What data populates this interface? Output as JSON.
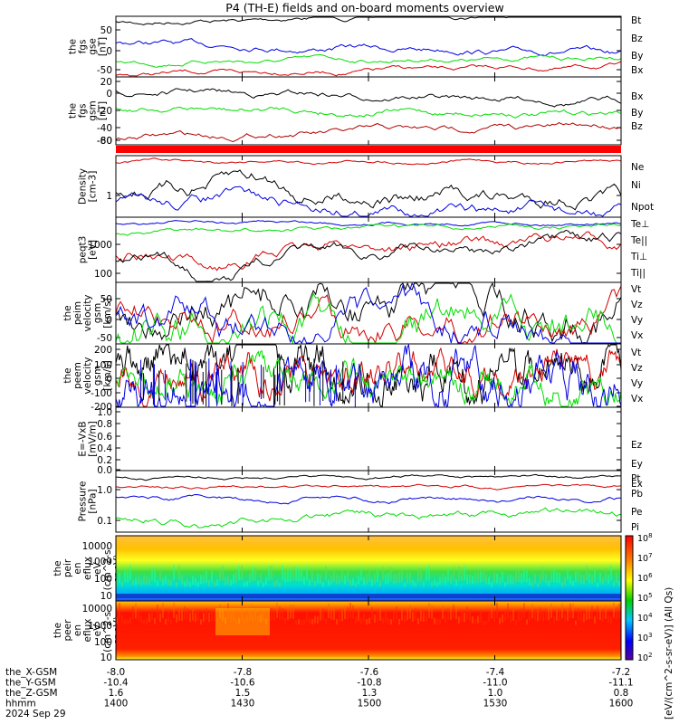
{
  "title": "P4 (TH-E) fields and on-board moments overview",
  "colors": {
    "black": "#000000",
    "red": "#d40000",
    "green": "#00dd00",
    "blue": "#0000e0",
    "darkred": "#b00000"
  },
  "chart_data": {
    "type": "line",
    "x_time_ticks": [
      "1400",
      "1430",
      "1500",
      "1530",
      "1600"
    ],
    "ephemeris": {
      "rows": [
        {
          "label": "the_X-GSM",
          "values": [
            "-8.0",
            "-7.8",
            "-7.6",
            "-7.4",
            "-7.2"
          ]
        },
        {
          "label": "the_Y-GSM",
          "values": [
            "-10.4",
            "-10.6",
            "-10.8",
            "-11.0",
            "-11.1"
          ]
        },
        {
          "label": "the_Z-GSM",
          "values": [
            "1.6",
            "1.5",
            "1.3",
            "1.0",
            "0.8"
          ]
        },
        {
          "label": "hhmm",
          "values": [
            "1400",
            "1430",
            "1500",
            "1530",
            "1600"
          ]
        }
      ],
      "date": "2024 Sep 29"
    },
    "panels": [
      {
        "ylabel": [
          "the",
          "fgs",
          "gse",
          "[nT]"
        ],
        "yticks": [
          "50",
          "0",
          "-50"
        ],
        "legend": [
          {
            "name": "Bt",
            "color": "#000000"
          },
          {
            "name": "Bz",
            "color": "#d40000"
          },
          {
            "name": "By",
            "color": "#00dd00"
          },
          {
            "name": "Bx",
            "color": "#0000e0"
          }
        ]
      },
      {
        "ylabel": [
          "the",
          "fgs",
          "gsm",
          "[nT]"
        ],
        "yticks": [
          "20",
          "0",
          "-20",
          "-40",
          "-60",
          "-80"
        ],
        "legend": [
          {
            "name": "Bx",
            "color": "#000000"
          },
          {
            "name": "By",
            "color": "#00dd00"
          },
          {
            "name": "Bz",
            "color": "#b00000"
          }
        ]
      },
      {
        "ylabel": [
          "Density",
          "[cm-3]"
        ],
        "yticks": [
          "1"
        ],
        "legend": [
          {
            "name": "Ne",
            "color": "#d40000"
          },
          {
            "name": "Ni",
            "color": "#000000"
          },
          {
            "name": "Npot",
            "color": "#0000e0"
          }
        ]
      },
      {
        "ylabel": [
          "peqt3",
          "[eV]"
        ],
        "yticks": [
          "1000",
          "100"
        ],
        "legend": [
          {
            "name": "Te⊥",
            "color": "#d40000"
          },
          {
            "name": "Te||",
            "color": "#000000"
          },
          {
            "name": "Ti⊥",
            "color": "#d40000"
          },
          {
            "name": "Ti||",
            "color": "#00dd00"
          }
        ]
      },
      {
        "ylabel": [
          "the",
          "peim",
          "velocity",
          "gsm",
          "[km/s]"
        ],
        "yticks": [
          "50",
          "0",
          "-50"
        ],
        "legend": [
          {
            "name": "Vt",
            "color": "#000000"
          },
          {
            "name": "Vz",
            "color": "#d40000"
          },
          {
            "name": "Vy",
            "color": "#00dd00"
          },
          {
            "name": "Vx",
            "color": "#0000e0"
          }
        ]
      },
      {
        "ylabel": [
          "the",
          "peem",
          "velocity",
          "gsm",
          "[km/s]"
        ],
        "yticks": [
          "200",
          "100",
          "0",
          "-100",
          "-200"
        ],
        "legend": [
          {
            "name": "Vt",
            "color": "#000000"
          },
          {
            "name": "Vz",
            "color": "#d40000"
          },
          {
            "name": "Vy",
            "color": "#00dd00"
          },
          {
            "name": "Vx",
            "color": "#0000e0"
          }
        ]
      },
      {
        "ylabel": [
          "E=-VxB",
          "[mV/m]"
        ],
        "yticks": [
          "1.0",
          "0.8",
          "0.6",
          "0.4",
          "0.2",
          "0.0"
        ],
        "legend": [
          {
            "name": "Ez",
            "color": "#d40000"
          },
          {
            "name": "Ey",
            "color": "#00dd00"
          },
          {
            "name": "Ex",
            "color": "#0000e0"
          }
        ]
      },
      {
        "ylabel": [
          "Pressure",
          "[nPa]"
        ],
        "yticks": [
          "1.0",
          "0.1"
        ],
        "legend": [
          {
            "name": "Pt",
            "color": "#000000"
          },
          {
            "name": "Pb",
            "color": "#d40000"
          },
          {
            "name": "Pe",
            "color": "#00dd00"
          },
          {
            "name": "Pi",
            "color": "#0000e0"
          }
        ]
      },
      {
        "ylabel": [
          "the",
          "peir",
          "en",
          "eflux",
          "eV",
          "(cm^2-s-",
          "sr-eV)"
        ],
        "yticks": [
          "10000",
          "1000",
          "100",
          "10"
        ]
      },
      {
        "ylabel": [
          "the",
          "peer",
          "en",
          "eflux",
          "eV",
          "(cm^2-s-",
          "sr-eV)"
        ],
        "yticks": [
          "10000",
          "1000",
          "100",
          "10"
        ]
      }
    ],
    "colorbar": {
      "label": "[eV/(cm^2-s-sr-eV)] (All Qs)",
      "ticks": [
        "10^8",
        "10^7",
        "10^6",
        "10^5",
        "10^4",
        "10^3",
        "10^2"
      ]
    }
  }
}
